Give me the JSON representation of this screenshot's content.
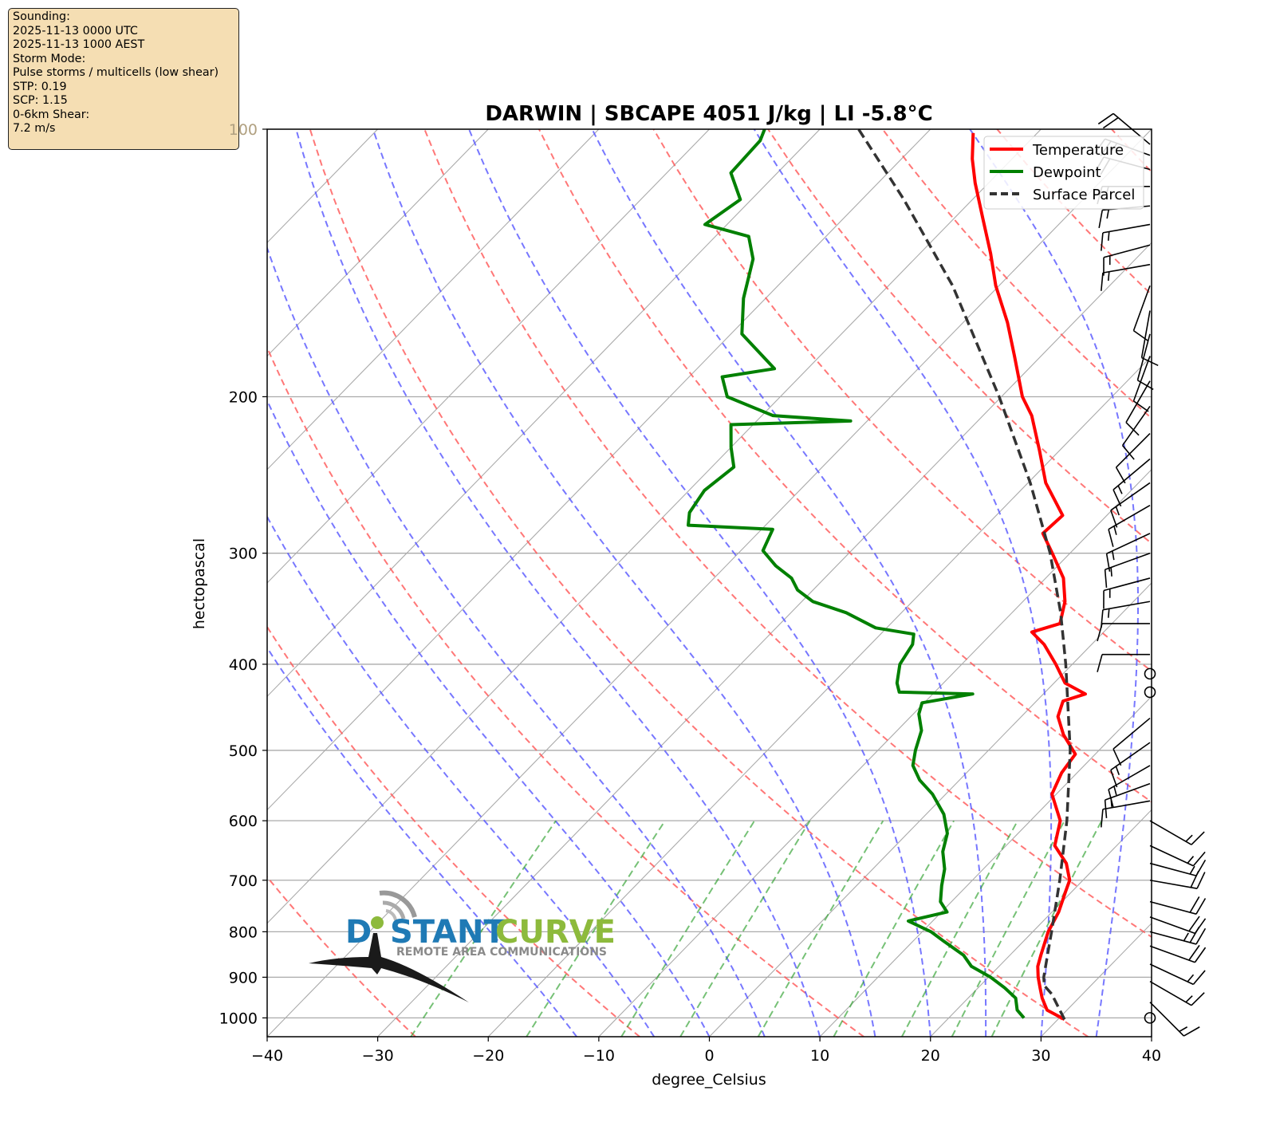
{
  "info_box": {
    "lines": [
      "Sounding:",
      "2025-11-13 0000 UTC",
      "2025-11-13 1000 AEST",
      "Storm Mode:",
      "Pulse storms / multicells (low shear)",
      "STP: 0.19",
      "SCP: 1.15",
      "0-6km Shear:",
      "7.2 m/s"
    ]
  },
  "logo": {
    "text_part1": "D",
    "text_part2": "STANT",
    "text_part3": "CURVE",
    "tagline": "REMOTE AREA COMMUNICATIONS",
    "colors": {
      "blue": "#1f7ab5",
      "green": "#8dba3c",
      "gray": "#8a8a8a",
      "dark": "#1a1a1a"
    }
  },
  "chart_data": {
    "type": "line",
    "subtype": "skew-T log-P diagram",
    "title": "DARWIN | SBCAPE 4051 J/kg | LI -5.8°C",
    "xlabel": "degree_Celsius",
    "ylabel": "hectopascal",
    "xlim": [
      -40,
      40
    ],
    "ylim": [
      1050,
      100
    ],
    "x_ticks": [
      -40,
      -30,
      -20,
      -10,
      0,
      10,
      20,
      30,
      40
    ],
    "x_tick_labels": [
      "−40",
      "−30",
      "−20",
      "−10",
      "0",
      "10",
      "20",
      "30",
      "40"
    ],
    "y_ticks": [
      1000,
      900,
      800,
      700,
      600,
      500,
      400,
      300,
      200,
      100
    ],
    "y_tick_labels": [
      "1000",
      "900",
      "800",
      "700",
      "600",
      "500",
      "400",
      "300",
      "200",
      "100"
    ],
    "legend": {
      "position": "top-right",
      "entries": [
        {
          "label": "Temperature",
          "color": "#ff0000",
          "style": "solid"
        },
        {
          "label": "Dewpoint",
          "color": "#008000",
          "style": "solid"
        },
        {
          "label": "Surface Parcel",
          "color": "#333333",
          "style": "dashed"
        }
      ]
    },
    "series": [
      {
        "name": "Temperature",
        "color": "#ff0000",
        "points": [
          [
            1004,
            30.6
          ],
          [
            980,
            28.2
          ],
          [
            950,
            26.7
          ],
          [
            925,
            25.6
          ],
          [
            900,
            24.5
          ],
          [
            875,
            23.5
          ],
          [
            850,
            22.8
          ],
          [
            800,
            21.4
          ],
          [
            760,
            20.6
          ],
          [
            720,
            19.4
          ],
          [
            700,
            18.8
          ],
          [
            670,
            17.0
          ],
          [
            640,
            14.4
          ],
          [
            600,
            12.7
          ],
          [
            560,
            9.6
          ],
          [
            530,
            8.6
          ],
          [
            505,
            8.2
          ],
          [
            480,
            5.4
          ],
          [
            458,
            3.3
          ],
          [
            440,
            2.4
          ],
          [
            432,
            3.8
          ],
          [
            420,
            1.0
          ],
          [
            400,
            -1.5
          ],
          [
            380,
            -4.3
          ],
          [
            368,
            -6.5
          ],
          [
            360,
            -4.7
          ],
          [
            340,
            -6.2
          ],
          [
            320,
            -8.4
          ],
          [
            300,
            -11.6
          ],
          [
            285,
            -14.2
          ],
          [
            272,
            -14.0
          ],
          [
            250,
            -18.4
          ],
          [
            230,
            -21.8
          ],
          [
            210,
            -25.6
          ],
          [
            200,
            -28.1
          ],
          [
            180,
            -32.4
          ],
          [
            165,
            -36.0
          ],
          [
            150,
            -40.3
          ],
          [
            138,
            -43.6
          ],
          [
            126,
            -47.4
          ],
          [
            115,
            -51.2
          ],
          [
            108,
            -53.6
          ],
          [
            101,
            -55.8
          ]
        ]
      },
      {
        "name": "Dewpoint",
        "color": "#008000",
        "points": [
          [
            1000,
            26.8
          ],
          [
            980,
            25.5
          ],
          [
            950,
            24.3
          ],
          [
            925,
            22.4
          ],
          [
            900,
            20.2
          ],
          [
            875,
            17.5
          ],
          [
            850,
            15.8
          ],
          [
            820,
            12.8
          ],
          [
            800,
            10.8
          ],
          [
            778,
            7.8
          ],
          [
            760,
            10.5
          ],
          [
            740,
            9.0
          ],
          [
            710,
            7.7
          ],
          [
            680,
            6.5
          ],
          [
            650,
            4.8
          ],
          [
            620,
            3.6
          ],
          [
            590,
            1.6
          ],
          [
            560,
            -1.2
          ],
          [
            540,
            -3.6
          ],
          [
            520,
            -5.5
          ],
          [
            500,
            -6.6
          ],
          [
            475,
            -7.8
          ],
          [
            455,
            -9.5
          ],
          [
            442,
            -10.2
          ],
          [
            432,
            -6.4
          ],
          [
            430,
            -13.2
          ],
          [
            420,
            -14.2
          ],
          [
            400,
            -15.6
          ],
          [
            380,
            -16.2
          ],
          [
            370,
            -17.0
          ],
          [
            364,
            -21.0
          ],
          [
            350,
            -25.0
          ],
          [
            340,
            -29.0
          ],
          [
            330,
            -31.4
          ],
          [
            320,
            -33.0
          ],
          [
            310,
            -35.5
          ],
          [
            298,
            -38.0
          ],
          [
            282,
            -39.0
          ],
          [
            279,
            -47.0
          ],
          [
            270,
            -48.0
          ],
          [
            255,
            -48.6
          ],
          [
            240,
            -48.0
          ],
          [
            228,
            -50.0
          ],
          [
            215,
            -52.0
          ],
          [
            213,
            -41.5
          ],
          [
            210,
            -49.0
          ],
          [
            200,
            -54.8
          ],
          [
            190,
            -57.0
          ],
          [
            186,
            -53.0
          ],
          [
            170,
            -59.0
          ],
          [
            155,
            -62.0
          ],
          [
            140,
            -64.6
          ],
          [
            132,
            -67.0
          ],
          [
            128,
            -72.0
          ],
          [
            120,
            -71.0
          ],
          [
            112,
            -74.2
          ],
          [
            103,
            -74.4
          ],
          [
            100,
            -75.0
          ]
        ]
      },
      {
        "name": "Surface Parcel",
        "color": "#333333",
        "style": "dashed",
        "points": [
          [
            1004,
            30.6
          ],
          [
            940,
            27.2
          ],
          [
            920,
            25.8
          ],
          [
            900,
            25.0
          ],
          [
            850,
            23.4
          ],
          [
            800,
            21.7
          ],
          [
            700,
            17.9
          ],
          [
            600,
            13.3
          ],
          [
            500,
            7.4
          ],
          [
            400,
            -0.6
          ],
          [
            350,
            -5.6
          ],
          [
            300,
            -11.8
          ],
          [
            250,
            -19.8
          ],
          [
            200,
            -30.2
          ],
          [
            150,
            -44.2
          ],
          [
            120,
            -56.2
          ],
          [
            100,
            -66.5
          ]
        ]
      }
    ],
    "reference_lines": {
      "dry_adiabats_theta_C": [
        -30,
        -10,
        10,
        30,
        50,
        70,
        90,
        110,
        130,
        150,
        170
      ],
      "moist_adiabats_theta_e_C": [
        -12,
        -5,
        0,
        5,
        10,
        15,
        20,
        25,
        30,
        35,
        40
      ],
      "mixing_ratio_lines_g_per_kg": [
        0.4,
        1,
        2,
        3,
        5,
        8,
        12,
        16,
        20
      ]
    },
    "wind_barbs": {
      "units": "knots",
      "x_position": "right edge",
      "levels": [
        {
          "p": 1000,
          "dir": 0,
          "spd": 0
        },
        {
          "p": 960,
          "dir": 135,
          "spd": 15
        },
        {
          "p": 910,
          "dir": 120,
          "spd": 15
        },
        {
          "p": 870,
          "dir": 115,
          "spd": 15
        },
        {
          "p": 830,
          "dir": 110,
          "spd": 20
        },
        {
          "p": 800,
          "dir": 105,
          "spd": 25
        },
        {
          "p": 770,
          "dir": 110,
          "spd": 20
        },
        {
          "p": 740,
          "dir": 105,
          "spd": 20
        },
        {
          "p": 700,
          "dir": 100,
          "spd": 20
        },
        {
          "p": 670,
          "dir": 105,
          "spd": 15
        },
        {
          "p": 640,
          "dir": 115,
          "spd": 15
        },
        {
          "p": 600,
          "dir": 120,
          "spd": 15
        },
        {
          "p": 570,
          "dir": 260,
          "spd": 10
        },
        {
          "p": 545,
          "dir": 250,
          "spd": 15
        },
        {
          "p": 520,
          "dir": 240,
          "spd": 15
        },
        {
          "p": 490,
          "dir": 235,
          "spd": 15
        },
        {
          "p": 460,
          "dir": 230,
          "spd": 10
        },
        {
          "p": 430,
          "dir": 0,
          "spd": 0
        },
        {
          "p": 410,
          "dir": 0,
          "spd": 0
        },
        {
          "p": 390,
          "dir": 270,
          "spd": 10
        },
        {
          "p": 360,
          "dir": 270,
          "spd": 10
        },
        {
          "p": 340,
          "dir": 260,
          "spd": 15
        },
        {
          "p": 320,
          "dir": 255,
          "spd": 15
        },
        {
          "p": 300,
          "dir": 250,
          "spd": 15
        },
        {
          "p": 285,
          "dir": 245,
          "spd": 15
        },
        {
          "p": 265,
          "dir": 240,
          "spd": 15
        },
        {
          "p": 250,
          "dir": 235,
          "spd": 15
        },
        {
          "p": 235,
          "dir": 230,
          "spd": 15
        },
        {
          "p": 220,
          "dir": 225,
          "spd": 10
        },
        {
          "p": 205,
          "dir": 215,
          "spd": 10
        },
        {
          "p": 192,
          "dir": 210,
          "spd": 10
        },
        {
          "p": 180,
          "dir": 200,
          "spd": 10
        },
        {
          "p": 170,
          "dir": 195,
          "spd": 10
        },
        {
          "p": 160,
          "dir": 190,
          "spd": 10
        },
        {
          "p": 150,
          "dir": 200,
          "spd": 10
        },
        {
          "p": 142,
          "dir": 260,
          "spd": 15
        },
        {
          "p": 135,
          "dir": 255,
          "spd": 15
        },
        {
          "p": 128,
          "dir": 260,
          "spd": 15
        },
        {
          "p": 122,
          "dir": 265,
          "spd": 15
        },
        {
          "p": 116,
          "dir": 270,
          "spd": 15
        },
        {
          "p": 111,
          "dir": 285,
          "spd": 20
        },
        {
          "p": 107,
          "dir": 290,
          "spd": 25
        },
        {
          "p": 104,
          "dir": 310,
          "spd": 20
        }
      ]
    }
  }
}
